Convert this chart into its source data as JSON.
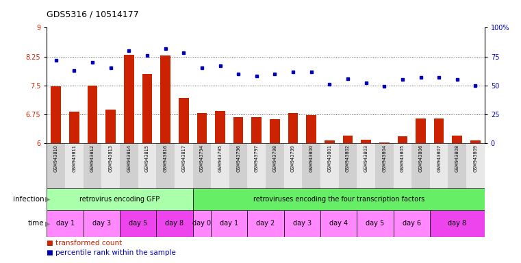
{
  "title": "GDS5316 / 10514177",
  "samples": [
    "GSM943810",
    "GSM943811",
    "GSM943812",
    "GSM943813",
    "GSM943814",
    "GSM943815",
    "GSM943816",
    "GSM943817",
    "GSM943794",
    "GSM943795",
    "GSM943796",
    "GSM943797",
    "GSM943798",
    "GSM943799",
    "GSM943800",
    "GSM943801",
    "GSM943802",
    "GSM943803",
    "GSM943804",
    "GSM943805",
    "GSM943806",
    "GSM943807",
    "GSM943808",
    "GSM943809"
  ],
  "bar_values": [
    7.47,
    6.83,
    7.5,
    6.87,
    8.3,
    7.8,
    8.28,
    7.18,
    6.78,
    6.84,
    6.68,
    6.68,
    6.62,
    6.78,
    6.73,
    6.08,
    6.2,
    6.1,
    6.02,
    6.18,
    6.65,
    6.65,
    6.2,
    6.08
  ],
  "dot_values": [
    72,
    63,
    70,
    65,
    80,
    76,
    82,
    78,
    65,
    67,
    60,
    58,
    60,
    62,
    62,
    51,
    56,
    52,
    49,
    55,
    57,
    57,
    55,
    50
  ],
  "ylim_left": [
    6,
    9
  ],
  "ylim_right": [
    0,
    100
  ],
  "yticks_left": [
    6,
    6.75,
    7.5,
    8.25,
    9
  ],
  "yticks_right": [
    0,
    25,
    50,
    75,
    100
  ],
  "ytick_labels_left": [
    "6",
    "6.75",
    "7.5",
    "8.25",
    "9"
  ],
  "ytick_labels_right": [
    "0",
    "25",
    "50",
    "75",
    "100%"
  ],
  "bar_color": "#cc2200",
  "dot_color": "#0000bb",
  "infection_groups": [
    {
      "label": "retrovirus encoding GFP",
      "start": 0,
      "end": 8,
      "color": "#aaffaa"
    },
    {
      "label": "retroviruses encoding the four transcription factors",
      "start": 8,
      "end": 24,
      "color": "#66ee66"
    }
  ],
  "time_groups": [
    {
      "label": "day 1",
      "start": 0,
      "end": 2,
      "color": "#ff88ff"
    },
    {
      "label": "day 3",
      "start": 2,
      "end": 4,
      "color": "#ff88ff"
    },
    {
      "label": "day 5",
      "start": 4,
      "end": 6,
      "color": "#ee44ee"
    },
    {
      "label": "day 8",
      "start": 6,
      "end": 8,
      "color": "#ee44ee"
    },
    {
      "label": "day 0",
      "start": 8,
      "end": 9,
      "color": "#ff88ff"
    },
    {
      "label": "day 1",
      "start": 9,
      "end": 11,
      "color": "#ff88ff"
    },
    {
      "label": "day 2",
      "start": 11,
      "end": 13,
      "color": "#ff88ff"
    },
    {
      "label": "day 3",
      "start": 13,
      "end": 15,
      "color": "#ff88ff"
    },
    {
      "label": "day 4",
      "start": 15,
      "end": 17,
      "color": "#ff88ff"
    },
    {
      "label": "day 5",
      "start": 17,
      "end": 19,
      "color": "#ff88ff"
    },
    {
      "label": "day 6",
      "start": 19,
      "end": 21,
      "color": "#ff88ff"
    },
    {
      "label": "day 8",
      "start": 21,
      "end": 24,
      "color": "#ee44ee"
    }
  ],
  "infection_label": "infection",
  "time_label": "time",
  "legend_items": [
    {
      "label": "transformed count",
      "color": "#cc2200"
    },
    {
      "label": "percentile rank within the sample",
      "color": "#0000bb"
    }
  ],
  "background_color": "#ffffff",
  "grid_color": "#555555",
  "tick_bg_even": "#d0d0d0",
  "tick_bg_odd": "#e8e8e8"
}
